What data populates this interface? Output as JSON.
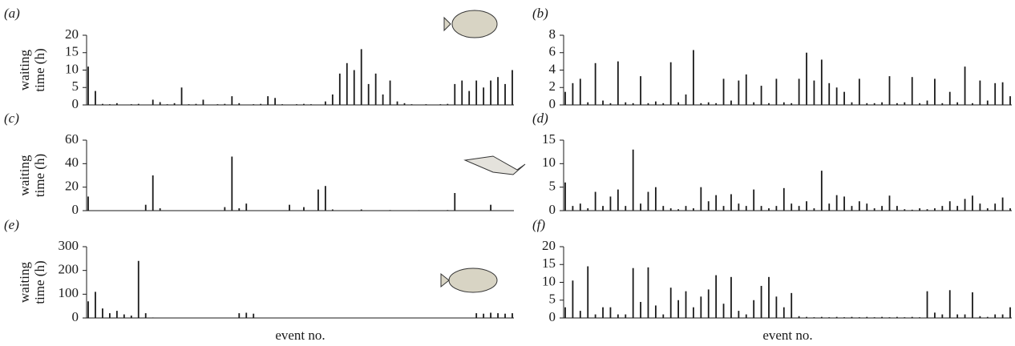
{
  "chart_data": [
    {
      "type": "bar",
      "label": "(a)",
      "ylabel": [
        "waiting",
        "time (h)"
      ],
      "color": "#1a1a1a",
      "ylim": [
        0,
        20
      ],
      "yticks": [
        0,
        5,
        10,
        15,
        20
      ],
      "values": [
        11,
        4,
        0.3,
        0.2,
        0.5,
        0.1,
        0.2,
        0.3,
        0.1,
        1.5,
        0.8,
        0.2,
        0.5,
        5,
        0.2,
        0.3,
        1.5,
        0.1,
        0.2,
        0.3,
        2.5,
        0.5,
        0.1,
        0.2,
        0.3,
        2.5,
        2,
        0.2,
        0.1,
        0.2,
        0.3,
        0.2,
        0.1,
        1,
        3,
        9,
        12,
        10,
        16,
        6,
        9,
        3,
        7,
        1,
        0.5,
        0.2,
        0.1,
        0.2,
        0.1,
        0.2,
        0.3,
        6,
        7,
        4,
        7,
        5,
        7,
        8,
        6,
        10
      ]
    },
    {
      "type": "bar",
      "label": "(b)",
      "color": "#1a1a1a",
      "ylim": [
        0,
        8
      ],
      "yticks": [
        0,
        2,
        4,
        6,
        8
      ],
      "values": [
        1.5,
        2.5,
        3,
        0.3,
        4.8,
        0.5,
        0.2,
        5,
        0.3,
        0.2,
        3.3,
        0.2,
        0.4,
        0.2,
        4.9,
        0.3,
        1.2,
        6.3,
        0.2,
        0.3,
        0.2,
        3,
        0.5,
        2.8,
        3.5,
        0.3,
        2.2,
        0.2,
        3,
        0.3,
        0.2,
        3,
        6,
        2.8,
        5.2,
        2.5,
        2,
        1.5,
        0.3,
        3,
        0.2,
        0.2,
        0.3,
        3.3,
        0.2,
        0.3,
        3.2,
        0.2,
        0.5,
        3,
        0.2,
        1.5,
        0.3,
        4.4,
        0.2,
        2.8,
        0.5,
        2.5,
        2.6,
        1
      ]
    },
    {
      "type": "bar",
      "label": "(c)",
      "ylabel": [
        "waiting",
        "time (h)"
      ],
      "color": "#1a1a1a",
      "ylim": [
        0,
        60
      ],
      "yticks": [
        0,
        20,
        40,
        60
      ],
      "values": [
        12,
        0.3,
        0.2,
        0.3,
        0.2,
        0.3,
        0.2,
        0.3,
        5,
        30,
        2,
        0.3,
        0.2,
        0.3,
        0.2,
        0.3,
        0.2,
        0.3,
        0.2,
        3,
        46,
        2,
        6,
        0.3,
        0.2,
        0.3,
        0.2,
        0.3,
        5,
        0.3,
        3,
        0.3,
        18,
        21,
        1,
        0.3,
        0.2,
        0.3,
        1,
        0.3,
        0.2,
        0.3,
        0.5,
        0.3,
        0.2,
        0.3,
        0.4,
        0.3,
        0.2,
        0.3,
        0.5,
        15,
        0.3,
        0.2,
        0.3,
        0.2,
        5,
        0.3,
        0.2,
        0.3
      ]
    },
    {
      "type": "bar",
      "label": "(d)",
      "color": "#1a1a1a",
      "ylim": [
        0,
        15
      ],
      "yticks": [
        0,
        5,
        10,
        15
      ],
      "values": [
        6,
        1,
        1.5,
        0.5,
        4,
        1,
        3,
        4.5,
        1,
        13,
        1.5,
        4,
        5,
        1,
        0.5,
        0.3,
        1,
        0.5,
        5,
        2,
        3.3,
        1,
        3.5,
        1.5,
        1,
        4.5,
        1,
        0.5,
        1,
        4.8,
        1.5,
        1,
        2,
        0.5,
        8.5,
        1.5,
        3.3,
        3,
        1,
        2,
        1.5,
        0.5,
        1,
        3.2,
        1,
        0.3,
        0.2,
        0.5,
        0.3,
        0.5,
        1,
        2,
        1,
        2.5,
        3.2,
        1.5,
        0.5,
        1.5,
        2.8,
        0.5
      ]
    },
    {
      "type": "bar",
      "label": "(e)",
      "ylabel": [
        "waiting",
        "time (h)"
      ],
      "xlabel": "event no.",
      "color": "#1a1a1a",
      "ylim": [
        0,
        300
      ],
      "yticks": [
        0,
        100,
        200,
        300
      ],
      "values": [
        70,
        110,
        40,
        20,
        30,
        15,
        10,
        240,
        20,
        2,
        1,
        1,
        1,
        1,
        1,
        1,
        1,
        1,
        1,
        1,
        1,
        20,
        22,
        18,
        1,
        1,
        1,
        1,
        1,
        1,
        1,
        1,
        1,
        1,
        1,
        1,
        1,
        1,
        1,
        1,
        1,
        1,
        1,
        1,
        1,
        1,
        1,
        1,
        1,
        1,
        1,
        1,
        1,
        1,
        20,
        18,
        22,
        20,
        18,
        20
      ]
    },
    {
      "type": "bar",
      "label": "(f)",
      "xlabel": "event no.",
      "color": "#1a1a1a",
      "ylim": [
        0,
        20
      ],
      "yticks": [
        0,
        5,
        10,
        15,
        20
      ],
      "values": [
        3,
        10.5,
        2,
        14.5,
        1,
        3,
        3,
        1,
        1,
        14,
        4.5,
        14.2,
        3.5,
        1,
        8.5,
        5,
        7.5,
        3,
        6,
        8,
        12,
        4,
        11.5,
        2,
        1,
        5,
        9,
        11.5,
        6,
        3,
        7,
        0.5,
        0.3,
        0.2,
        0.3,
        0.2,
        0.3,
        0.2,
        0.3,
        0.2,
        0.3,
        0.2,
        0.3,
        0.2,
        0.3,
        0.2,
        0.3,
        0.2,
        7.5,
        1.5,
        1,
        7.8,
        1,
        1,
        7.2,
        0.5,
        0.3,
        1,
        1,
        3
      ]
    }
  ]
}
